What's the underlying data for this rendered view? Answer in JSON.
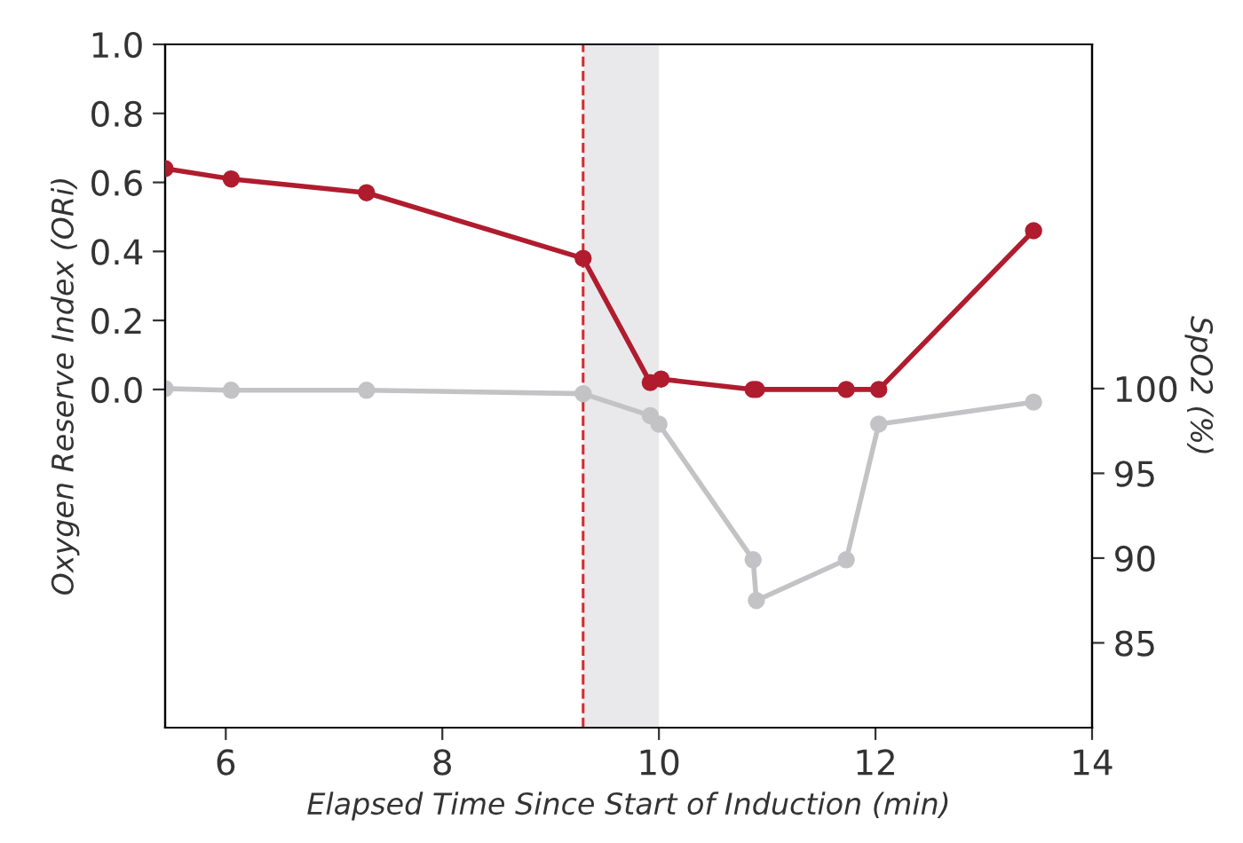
{
  "chart_data": {
    "type": "line",
    "xlabel": "Elapsed Time Since Start of Induction (min)",
    "ylabel": "Oxygen Reserve Index (ORi)",
    "y2label": "SpO2 (%)",
    "xlim": [
      5.44,
      14
    ],
    "xticks": [
      6,
      8,
      10,
      12,
      14
    ],
    "ylim": [
      -0.98,
      1.0
    ],
    "yticks": [
      {
        "value": 0,
        "label": "0.0"
      },
      {
        "value": 0.2,
        "label": "0.2"
      },
      {
        "value": 0.4,
        "label": "0.4"
      },
      {
        "value": 0.6,
        "label": "0.6"
      },
      {
        "value": 0.8,
        "label": "0.8"
      },
      {
        "value": 1,
        "label": "1.0"
      }
    ],
    "y2lim": [
      80,
      120.3
    ],
    "y2ticks": [
      85,
      90,
      95,
      100
    ],
    "marker": "circle",
    "grid": false,
    "legend": false,
    "series": [
      {
        "color": "#b01c2e",
        "x": [
          5.44,
          6.05,
          7.3,
          9.3,
          9.92,
          10.02,
          10.87,
          10.9,
          11.73,
          12.03,
          13.46
        ],
        "values": [
          0.64,
          0.61,
          0.57,
          0.38,
          0.02,
          0.03,
          0.0,
          0.0,
          0.0,
          0.0,
          0.46
        ]
      },
      {
        "color": "#c3c3c5",
        "axis": "y2",
        "x": [
          5.44,
          6.05,
          7.3,
          9.3,
          9.92,
          10.0,
          10.87,
          10.9,
          11.73,
          12.03,
          13.46
        ],
        "values": [
          100,
          99.9,
          99.9,
          99.7,
          98.4,
          97.9,
          89.9,
          87.5,
          89.9,
          97.9,
          99.2
        ]
      }
    ],
    "ref_lines": [
      {
        "axis": "x",
        "value": 9.3,
        "color": "#d42c30",
        "line_style": "dashed"
      }
    ],
    "bands": [
      {
        "axis": "x",
        "from": 9.3,
        "to": 10.0,
        "color": "#e9e9ec"
      }
    ]
  }
}
